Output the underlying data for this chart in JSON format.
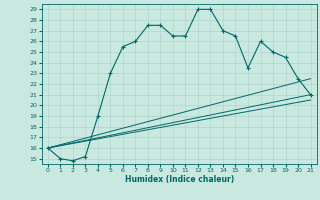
{
  "title": "",
  "xlabel": "Humidex (Indice chaleur)",
  "ylabel": "",
  "xlim": [
    -0.5,
    21.5
  ],
  "ylim": [
    14.5,
    29.5
  ],
  "bg_color": "#c8e8e0",
  "grid_color": "#b0d4cc",
  "line_color": "#006868",
  "line1": [
    [
      0,
      16
    ],
    [
      1,
      15
    ],
    [
      2,
      14.8
    ],
    [
      3,
      15.2
    ],
    [
      4,
      19.0
    ],
    [
      5,
      23.0
    ],
    [
      6,
      25.5
    ],
    [
      7,
      26.0
    ],
    [
      8,
      27.5
    ],
    [
      9,
      27.5
    ],
    [
      10,
      26.5
    ],
    [
      11,
      26.5
    ],
    [
      12,
      29.0
    ],
    [
      13,
      29.0
    ],
    [
      14,
      27.0
    ],
    [
      15,
      26.5
    ],
    [
      16,
      23.5
    ],
    [
      17,
      26.0
    ],
    [
      18,
      25.0
    ],
    [
      19,
      24.5
    ],
    [
      20,
      22.5
    ],
    [
      21,
      21.0
    ]
  ],
  "line2": [
    [
      0,
      16
    ],
    [
      21,
      22.5
    ]
  ],
  "line3": [
    [
      0,
      16
    ],
    [
      21,
      21.0
    ]
  ],
  "line4": [
    [
      0,
      16
    ],
    [
      21,
      20.5
    ]
  ],
  "xticks": [
    0,
    1,
    2,
    3,
    4,
    5,
    6,
    7,
    8,
    9,
    10,
    11,
    12,
    13,
    14,
    15,
    16,
    17,
    18,
    19,
    20,
    21
  ],
  "yticks": [
    15,
    16,
    17,
    18,
    19,
    20,
    21,
    22,
    23,
    24,
    25,
    26,
    27,
    28,
    29
  ]
}
